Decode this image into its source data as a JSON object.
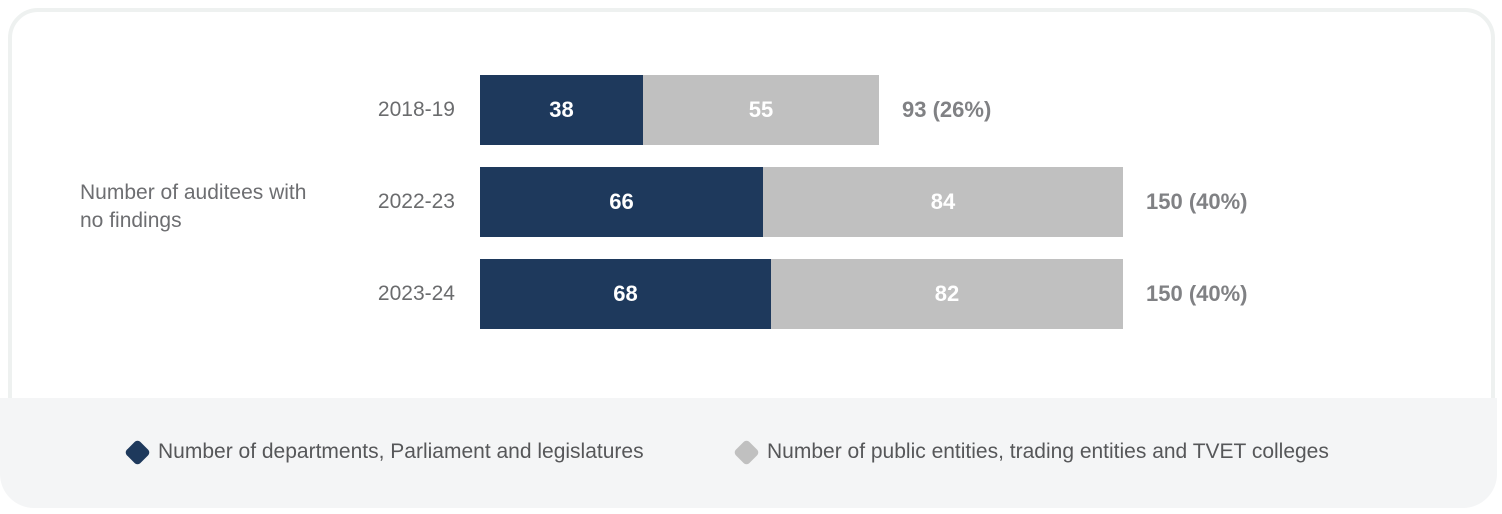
{
  "chart_data": {
    "type": "bar",
    "variant": "horizontal-stacked",
    "title": "Number of auditees with no findings",
    "categories": [
      "2018-19",
      "2022-23",
      "2023-24"
    ],
    "series": [
      {
        "name": "Number of departments, Parliament and legislatures",
        "color": "#1e395c",
        "values": [
          38,
          66,
          68
        ]
      },
      {
        "name": "Number of public entities, trading entities and TVET colleges",
        "color": "#c0c0c0",
        "values": [
          55,
          84,
          82
        ]
      }
    ],
    "totals": [
      "93 (26%)",
      "150 (40%)",
      "150 (40%)"
    ],
    "axis_max": 150,
    "grid": false,
    "legend_position": "bottom"
  },
  "colors": {
    "dark_navy": "#1e395c",
    "gray_bar": "#c0c0c0",
    "legend_band_bg": "#f4f5f6",
    "card_border": "#eef1f0",
    "label_gray": "#6b6c6e",
    "total_gray": "#808184"
  }
}
